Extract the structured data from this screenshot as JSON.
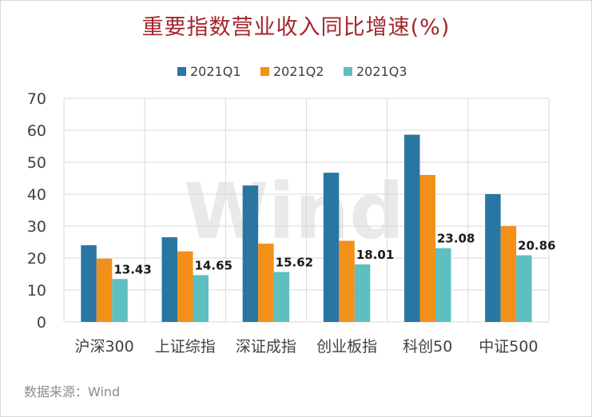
{
  "title": "重要指数营业收入同比增速(%)",
  "source": "数据来源：Wind",
  "watermark": "Wind",
  "chart_data": {
    "type": "bar",
    "categories": [
      "沪深300",
      "上证综指",
      "深证成指",
      "创业板指",
      "科创50",
      "中证500"
    ],
    "series": [
      {
        "name": "2021Q1",
        "color": "#2a76a2",
        "values": [
          24.0,
          26.5,
          42.7,
          46.7,
          58.6,
          40.0
        ]
      },
      {
        "name": "2021Q2",
        "color": "#f39019",
        "values": [
          19.8,
          22.1,
          24.5,
          25.4,
          46.0,
          30.0
        ]
      },
      {
        "name": "2021Q3",
        "color": "#5dbfc0",
        "values": [
          13.43,
          14.65,
          15.62,
          18.01,
          23.08,
          20.86
        ]
      }
    ],
    "data_labels": [
      "13.43",
      "14.65",
      "15.62",
      "18.01",
      "23.08",
      "20.86"
    ],
    "ylim": [
      0,
      70
    ],
    "yticks": [
      0,
      10,
      20,
      30,
      40,
      50,
      60,
      70
    ],
    "grid": true,
    "legend": "top-center"
  }
}
